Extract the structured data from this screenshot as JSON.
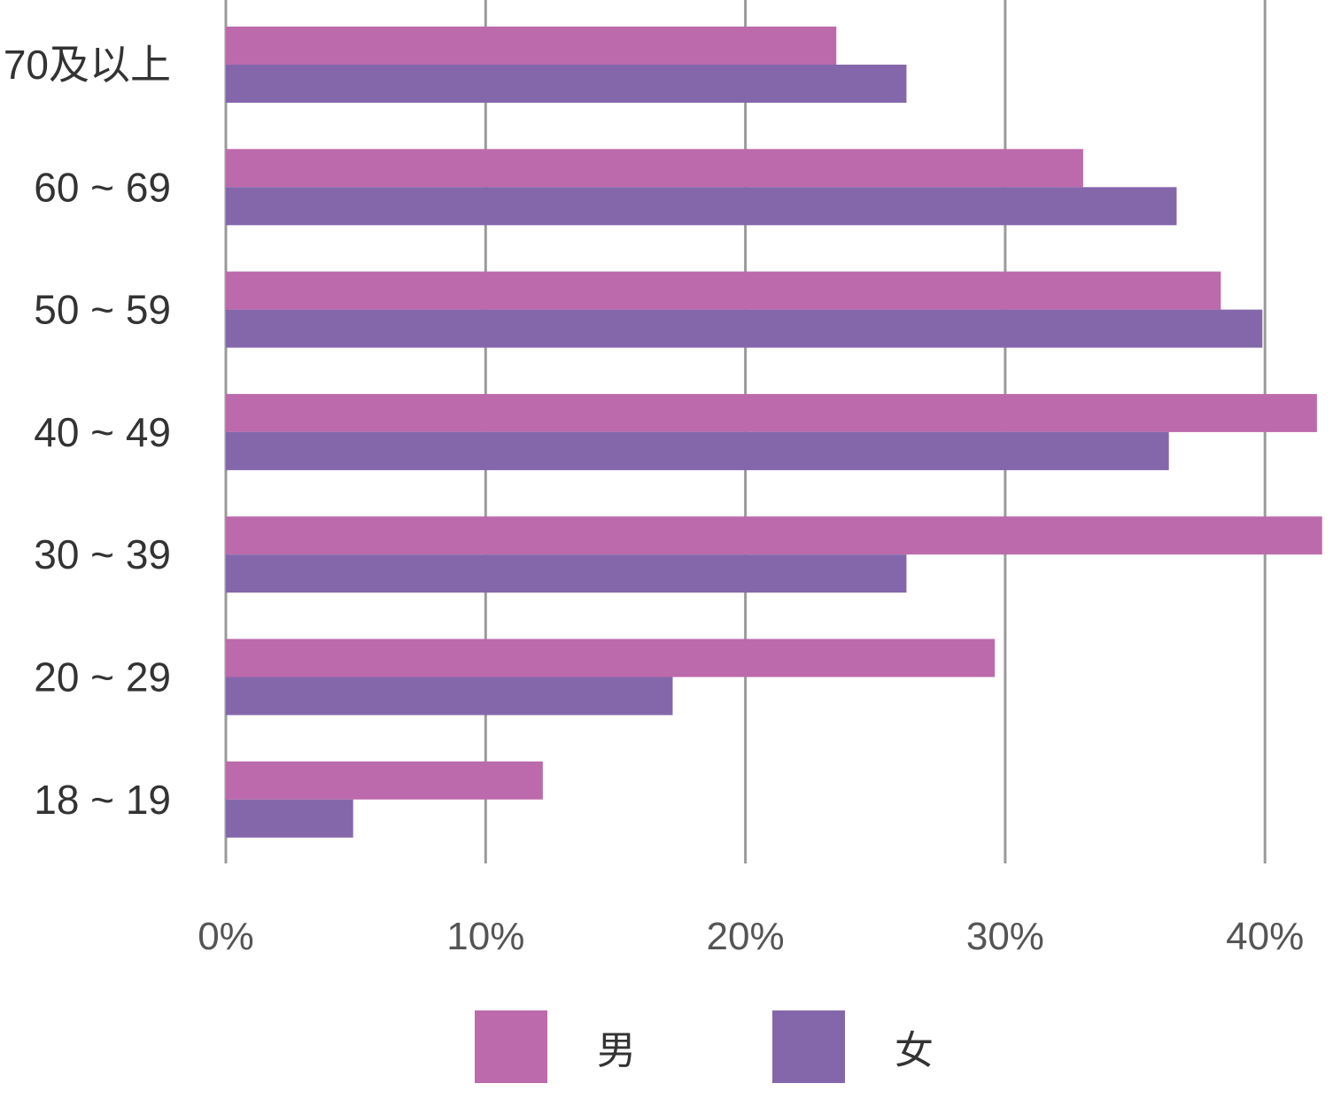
{
  "chart_data": {
    "type": "bar",
    "orientation": "horizontal",
    "categories": [
      "70及以上",
      "60 ~ 69",
      "50 ~ 59",
      "40 ~ 49",
      "30 ~ 39",
      "20 ~ 29",
      "18 ~ 19"
    ],
    "series": [
      {
        "name": "男",
        "color": "#bc6aab",
        "values": [
          23.5,
          33.0,
          38.3,
          42.0,
          42.2,
          29.6,
          12.2
        ]
      },
      {
        "name": "女",
        "color": "#8467ab",
        "values": [
          26.2,
          36.6,
          39.9,
          36.3,
          26.2,
          17.2,
          4.9
        ]
      }
    ],
    "x_ticks": [
      "0%",
      "10%",
      "20%",
      "30%",
      "40%"
    ],
    "xlim": [
      0,
      42.5
    ],
    "grid": true,
    "legend_position": "bottom"
  }
}
